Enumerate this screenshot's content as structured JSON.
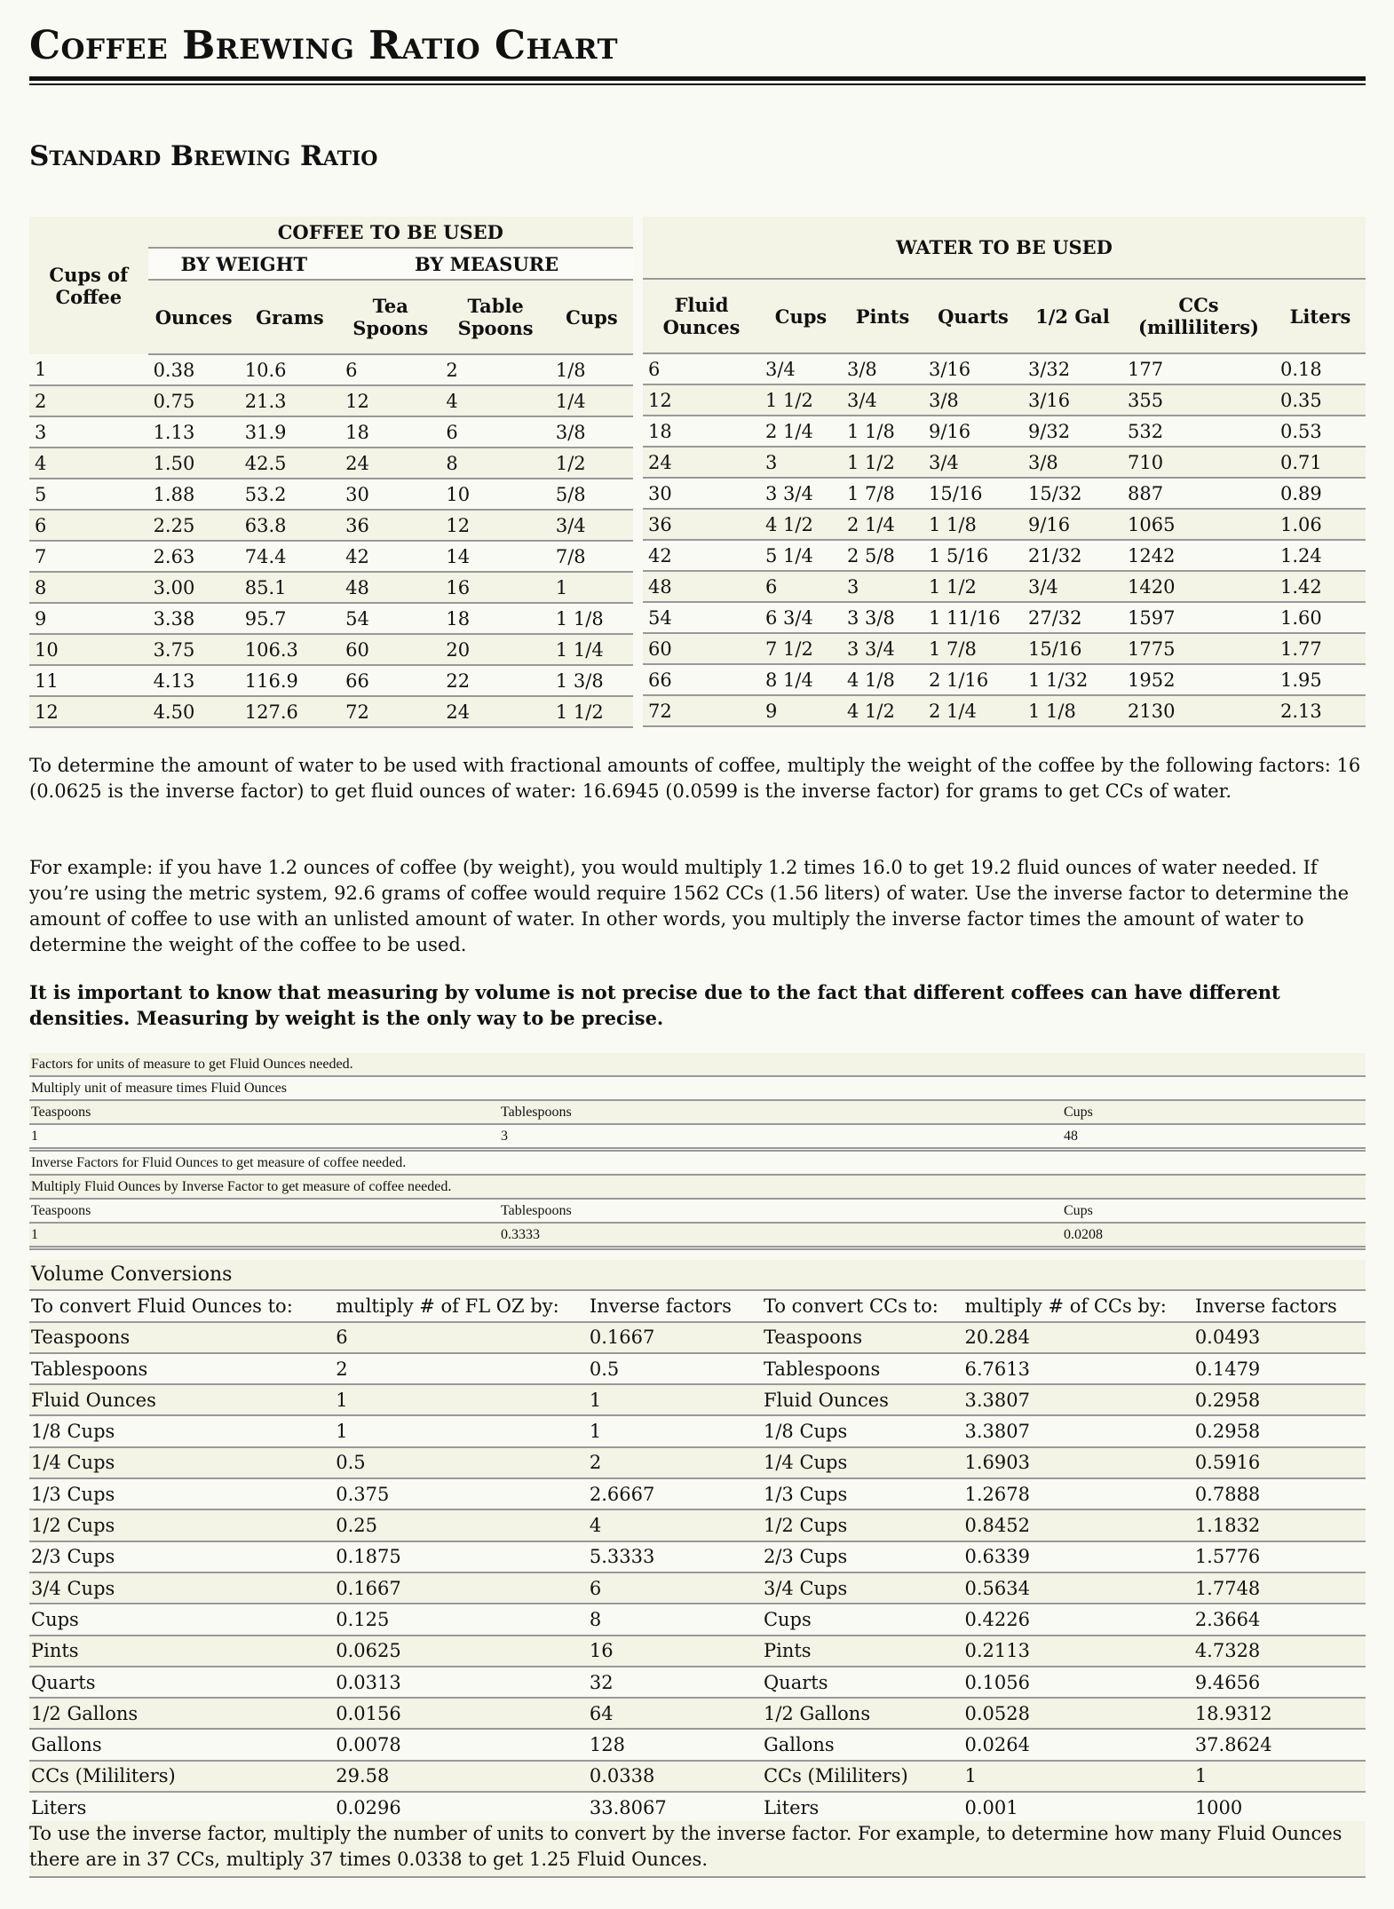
{
  "title": "Coffee Brewing Ratio Chart",
  "subtitle": "Standard Brewing Ratio",
  "brew_table": {
    "coffee_group": "COFFEE TO BE USED",
    "water_group": "WATER TO BE USED",
    "by_weight": "BY WEIGHT",
    "by_measure": "BY MEASURE",
    "cups_of_coffee": "Cups of Coffee",
    "coffee_cols": [
      "Ounces",
      "Grams",
      "Tea Spoons",
      "Table Spoons",
      "Cups"
    ],
    "water_cols": [
      "Fluid Ounces",
      "Cups",
      "Pints",
      "Quarts",
      "1/2 Gal",
      "CCs (milliliters)",
      "Liters"
    ],
    "rows": [
      [
        "1",
        "0.38",
        "10.6",
        "6",
        "2",
        "1/8",
        "6",
        "3/4",
        "3/8",
        "3/16",
        "3/32",
        "177",
        "0.18"
      ],
      [
        "2",
        "0.75",
        "21.3",
        "12",
        "4",
        "1/4",
        "12",
        "1 1/2",
        "3/4",
        "3/8",
        "3/16",
        "355",
        "0.35"
      ],
      [
        "3",
        "1.13",
        "31.9",
        "18",
        "6",
        "3/8",
        "18",
        "2 1/4",
        "1 1/8",
        "9/16",
        "9/32",
        "532",
        "0.53"
      ],
      [
        "4",
        "1.50",
        "42.5",
        "24",
        "8",
        "1/2",
        "24",
        "3",
        "1 1/2",
        "3/4",
        "3/8",
        "710",
        "0.71"
      ],
      [
        "5",
        "1.88",
        "53.2",
        "30",
        "10",
        "5/8",
        "30",
        "3 3/4",
        "1 7/8",
        "15/16",
        "15/32",
        "887",
        "0.89"
      ],
      [
        "6",
        "2.25",
        "63.8",
        "36",
        "12",
        "3/4",
        "36",
        "4 1/2",
        "2 1/4",
        "1 1/8",
        "9/16",
        "1065",
        "1.06"
      ],
      [
        "7",
        "2.63",
        "74.4",
        "42",
        "14",
        "7/8",
        "42",
        "5 1/4",
        "2 5/8",
        "1 5/16",
        "21/32",
        "1242",
        "1.24"
      ],
      [
        "8",
        "3.00",
        "85.1",
        "48",
        "16",
        "1",
        "48",
        "6",
        "3",
        "1 1/2",
        "3/4",
        "1420",
        "1.42"
      ],
      [
        "9",
        "3.38",
        "95.7",
        "54",
        "18",
        "1 1/8",
        "54",
        "6 3/4",
        "3 3/8",
        "1 11/16",
        "27/32",
        "1597",
        "1.60"
      ],
      [
        "10",
        "3.75",
        "106.3",
        "60",
        "20",
        "1 1/4",
        "60",
        "7 1/2",
        "3 3/4",
        "1 7/8",
        "15/16",
        "1775",
        "1.77"
      ],
      [
        "11",
        "4.13",
        "116.9",
        "66",
        "22",
        "1 3/8",
        "66",
        "8 1/4",
        "4 1/8",
        "2 1/16",
        "1 1/32",
        "1952",
        "1.95"
      ],
      [
        "12",
        "4.50",
        "127.6",
        "72",
        "24",
        "1 1/2",
        "72",
        "9",
        "4 1/2",
        "2 1/4",
        "1 1/8",
        "2130",
        "2.13"
      ]
    ]
  },
  "paragraphs": [
    "To determine the amount of water to be used with fractional amounts of coffee, multiply the weight of the coffee by the following factors: 16 (0.0625 is the inverse factor) to get fluid ounces of water: 16.6945 (0.0599 is the inverse factor) for grams to get CCs of water.",
    "For example: if you have 1.2 ounces of coffee (by weight), you would multiply 1.2 times 16.0 to get 19.2 fluid ounces of water needed. If you’re using the metric system, 92.6 grams of coffee would require 1562 CCs (1.56 liters) of water. Use the inverse factor to determine the amount of coffee to use with an unlisted amount of water.  In other words, you multiply the inverse factor times the amount of water to determine the weight of the coffee to be used.",
    "It is important to know that measuring by volume is not precise due to the fact that different coffees can have different densities.  Measuring by weight is the only way to be precise."
  ],
  "factors": {
    "f_title": "Factors for units of measure to get Fluid Ounces needed.",
    "f_sub": "Multiply unit of measure times Fluid Ounces",
    "f_head": [
      "Teaspoons",
      "Tablespoons",
      "Cups"
    ],
    "f_vals": [
      "1",
      "3",
      "48"
    ],
    "i_title": "Inverse Factors for Fluid Ounces to get measure of coffee needed.",
    "i_sub": "Multiply Fluid Ounces by Inverse Factor to get measure of coffee needed.",
    "i_head": [
      "Teaspoons",
      "Tablespoons",
      "Cups"
    ],
    "i_vals": [
      "1",
      "0.3333",
      "0.0208"
    ]
  },
  "volume": {
    "title": "Volume Conversions",
    "headers": [
      "To convert Fluid Ounces to:",
      "multiply # of FL OZ by:",
      "Inverse factors",
      "To convert CCs to:",
      "multiply # of CCs by:",
      "Inverse factors"
    ],
    "rows": [
      [
        "Teaspoons",
        "6",
        "0.1667",
        "Teaspoons",
        "20.284",
        "0.0493"
      ],
      [
        "Tablespoons",
        "2",
        "0.5",
        "Tablespoons",
        "6.7613",
        "0.1479"
      ],
      [
        "Fluid Ounces",
        "1",
        "1",
        "Fluid Ounces",
        "3.3807",
        "0.2958"
      ],
      [
        "1/8 Cups",
        "1",
        "1",
        "1/8 Cups",
        "3.3807",
        "0.2958"
      ],
      [
        "1/4 Cups",
        "0.5",
        "2",
        "1/4 Cups",
        "1.6903",
        "0.5916"
      ],
      [
        "1/3 Cups",
        "0.375",
        "2.6667",
        "1/3 Cups",
        "1.2678",
        "0.7888"
      ],
      [
        "1/2 Cups",
        "0.25",
        "4",
        "1/2 Cups",
        "0.8452",
        "1.1832"
      ],
      [
        "2/3 Cups",
        "0.1875",
        "5.3333",
        "2/3 Cups",
        "0.6339",
        "1.5776"
      ],
      [
        "3/4 Cups",
        "0.1667",
        "6",
        "3/4 Cups",
        "0.5634",
        "1.7748"
      ],
      [
        "Cups",
        "0.125",
        "8",
        "Cups",
        "0.4226",
        "2.3664"
      ],
      [
        "Pints",
        "0.0625",
        "16",
        "Pints",
        "0.2113",
        "4.7328"
      ],
      [
        "Quarts",
        "0.0313",
        "32",
        "Quarts",
        "0.1056",
        "9.4656"
      ],
      [
        "1/2 Gallons",
        "0.0156",
        "64",
        "1/2 Gallons",
        "0.0528",
        "18.9312"
      ],
      [
        "Gallons",
        "0.0078",
        "128",
        "Gallons",
        "0.0264",
        "37.8624"
      ],
      [
        "CCs (Mililiters)",
        "29.58",
        "0.0338",
        "CCs (Mililiters)",
        "1",
        "1"
      ],
      [
        "Liters",
        "0.0296",
        "33.8067",
        "Liters",
        "0.001",
        "1000"
      ]
    ],
    "footer": "To use the inverse factor, multiply the number of units to convert by the inverse factor.  For example, to determine how many Fluid Ounces there are in 37 CCs, multiply 37 times 0.0338 to get 1.25 Fluid Ounces."
  }
}
